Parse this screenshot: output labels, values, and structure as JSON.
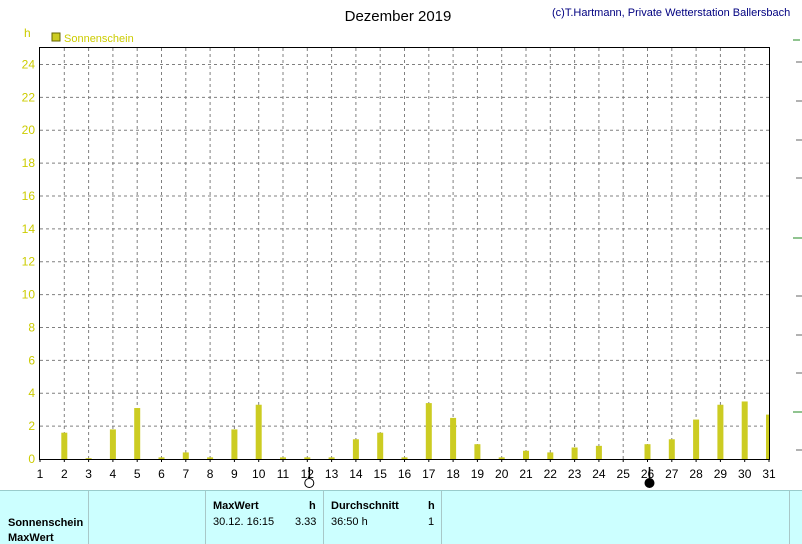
{
  "chart_data": {
    "type": "bar",
    "title": "Dezember 2019",
    "ylabel": "h",
    "ylim": [
      0,
      25
    ],
    "yticks": [
      0,
      2,
      4,
      6,
      8,
      10,
      12,
      14,
      16,
      18,
      20,
      22,
      24
    ],
    "categories": [
      "1",
      "2",
      "3",
      "4",
      "5",
      "6",
      "7",
      "8",
      "9",
      "10",
      "11",
      "12",
      "13",
      "14",
      "15",
      "16",
      "17",
      "18",
      "19",
      "20",
      "21",
      "22",
      "23",
      "24",
      "25",
      "26",
      "27",
      "28",
      "29",
      "30",
      "31"
    ],
    "series": [
      {
        "name": "Sonnenschein",
        "color": "#cccc22",
        "values": [
          0,
          1.6,
          0.05,
          1.8,
          3.1,
          0.1,
          0.4,
          0.1,
          1.8,
          3.3,
          0.1,
          0.1,
          0.1,
          1.2,
          1.6,
          0.1,
          3.4,
          2.5,
          0.9,
          0.1,
          0.5,
          0.4,
          0.7,
          0.8,
          0,
          0.9,
          1.2,
          2.4,
          3.3,
          3.5,
          2.7
        ]
      }
    ],
    "grid": true,
    "legend": "top-left",
    "moon_phases": [
      {
        "day": 12,
        "phase": "full"
      },
      {
        "day": 26,
        "phase": "new"
      }
    ]
  },
  "copyright": "(c)T.Hartmann, Private Wetterstation Ballersbach",
  "colors": {
    "axis_text": "#cccc00",
    "copyright": "#000080",
    "grid": "#808080",
    "panel_bg": "#ccffff"
  },
  "panel": {
    "row1_label": "Sonnenschein",
    "row2_label": "MaxWert",
    "maxwert_header": "MaxWert",
    "maxwert_unit": "h",
    "maxwert_time": "30.12.  16:15",
    "maxwert_value": "3.33",
    "avg_header": "Durchschnitt",
    "avg_unit": "h",
    "avg_value": "36:50 h",
    "avg_count": "1"
  }
}
